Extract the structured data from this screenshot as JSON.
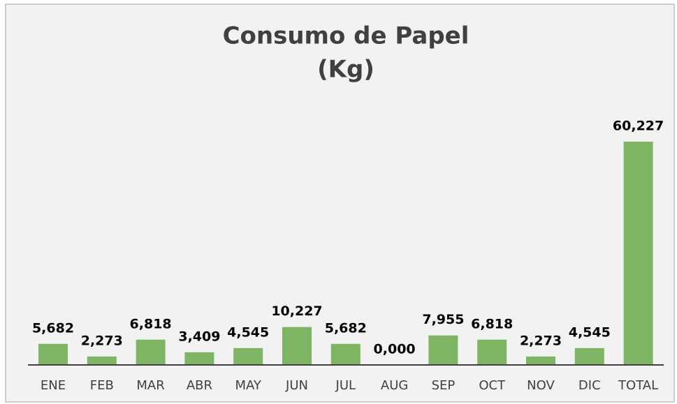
{
  "chart_data": {
    "type": "bar",
    "title": "Consumo de Papel",
    "subtitle": "(Kg)",
    "categories": [
      "ENE",
      "FEB",
      "MAR",
      "ABR",
      "MAY",
      "JUN",
      "JUL",
      "AUG",
      "SEP",
      "OCT",
      "NOV",
      "DIC",
      "TOTAL"
    ],
    "values": [
      5.682,
      2.273,
      6.818,
      3.409,
      4.545,
      10.227,
      5.682,
      0,
      7.955,
      6.818,
      2.273,
      4.545,
      60.227
    ],
    "value_labels": [
      "5,682",
      "2,273",
      "6,818",
      "3,409",
      "4,545",
      "10,227",
      "5,682",
      "0,000",
      "7,955",
      "6,818",
      "2,273",
      "4,545",
      "60,227"
    ],
    "color": "#7db562"
  }
}
